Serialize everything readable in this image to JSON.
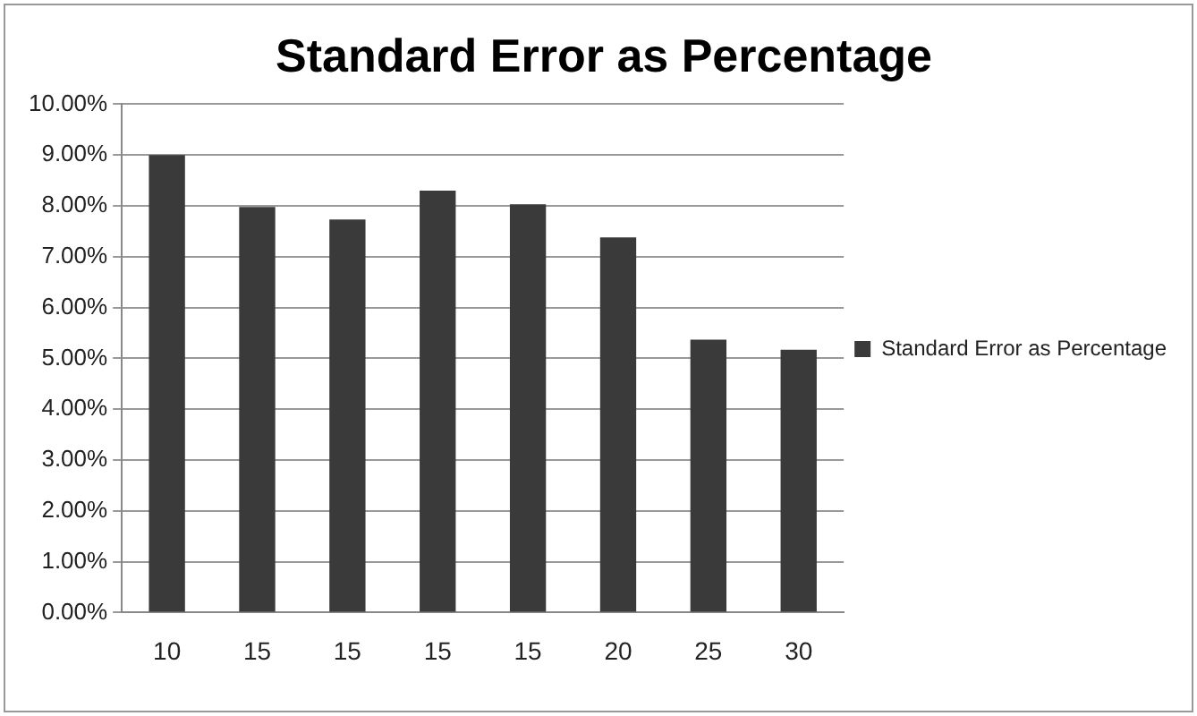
{
  "chart_data": {
    "type": "bar",
    "title": "Standard Error as Percentage",
    "categories": [
      "10",
      "15",
      "15",
      "15",
      "15",
      "20",
      "25",
      "30"
    ],
    "series": [
      {
        "name": "Standard Error as Percentage",
        "color": "#3a3a3a",
        "values": [
          9.0,
          7.98,
          7.73,
          8.3,
          8.03,
          7.38,
          5.37,
          5.17
        ]
      }
    ],
    "ylim": [
      0,
      10
    ],
    "yticks": [
      {
        "value": 0,
        "label": "0.00%"
      },
      {
        "value": 1,
        "label": "1.00%"
      },
      {
        "value": 2,
        "label": "2.00%"
      },
      {
        "value": 3,
        "label": "3.00%"
      },
      {
        "value": 4,
        "label": "4.00%"
      },
      {
        "value": 5,
        "label": "5.00%"
      },
      {
        "value": 6,
        "label": "6.00%"
      },
      {
        "value": 7,
        "label": "7.00%"
      },
      {
        "value": 8,
        "label": "8.00%"
      },
      {
        "value": 9,
        "label": "9.00%"
      },
      {
        "value": 10,
        "label": "10.00%"
      }
    ],
    "grid": "y",
    "legend": "right"
  }
}
